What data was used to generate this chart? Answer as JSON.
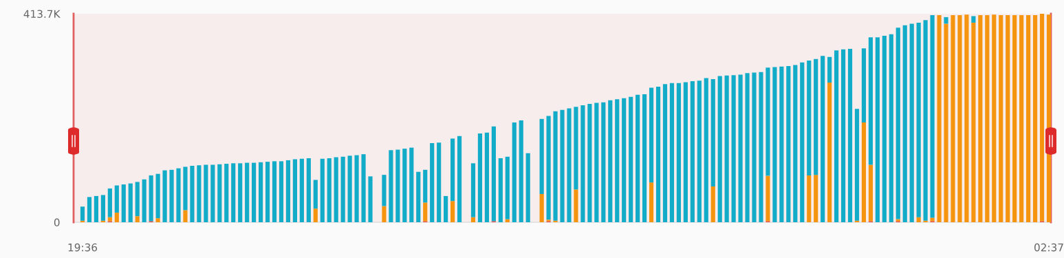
{
  "chart_data": {
    "type": "bar",
    "stacked": true,
    "categories": [
      "19:36",
      null,
      null,
      null,
      null,
      null,
      null,
      null,
      null,
      null,
      null,
      null,
      null,
      null,
      null,
      null,
      null,
      null,
      null,
      null,
      null,
      null,
      null,
      null,
      null,
      null,
      null,
      null,
      null,
      null,
      null,
      null,
      null,
      null,
      null,
      null,
      null,
      null,
      null,
      null,
      null,
      null,
      null,
      null,
      null,
      null,
      null,
      null,
      null,
      null,
      null,
      null,
      null,
      null,
      null,
      null,
      null,
      null,
      null,
      null,
      null,
      null,
      null,
      null,
      null,
      null,
      null,
      null,
      null,
      null,
      null,
      null,
      null,
      null,
      null,
      null,
      null,
      null,
      null,
      null,
      null,
      null,
      null,
      null,
      null,
      null,
      null,
      null,
      null,
      null,
      null,
      null,
      null,
      null,
      null,
      null,
      null,
      null,
      null,
      null,
      null,
      null,
      null,
      null,
      null,
      null,
      null,
      null,
      null,
      null,
      null,
      null,
      null,
      null,
      null,
      null,
      null,
      null,
      null,
      null,
      null,
      null,
      null,
      null,
      null,
      null,
      null,
      null,
      null,
      null,
      null,
      null,
      null,
      null,
      null,
      null,
      null,
      null,
      null,
      null,
      null,
      "02:37"
    ],
    "series": [
      {
        "color": "#e8413c",
        "values": [
          0,
          0,
          0,
          0,
          2,
          0,
          0,
          0,
          0,
          0,
          2,
          0,
          0,
          0,
          0,
          0,
          0,
          0,
          0,
          0,
          0,
          0,
          0,
          0,
          0,
          0,
          0,
          0,
          0,
          0,
          0,
          0,
          0,
          0,
          0,
          0,
          0,
          0,
          0,
          0,
          0,
          0,
          0,
          null,
          0,
          0,
          0,
          0,
          0,
          0,
          2,
          0,
          0,
          0,
          0,
          0,
          null,
          0,
          0,
          0,
          2,
          0,
          0,
          0,
          0,
          0,
          null,
          0,
          2,
          0,
          0,
          0,
          0,
          0,
          0,
          0,
          0,
          0,
          0,
          0,
          0,
          0,
          0,
          0,
          0,
          0,
          0,
          0,
          0,
          0,
          0,
          0,
          0,
          0,
          0,
          0,
          0,
          0,
          0,
          0,
          2,
          0,
          0,
          0,
          0,
          0,
          0,
          0,
          0,
          0,
          0,
          0,
          0,
          0,
          0,
          2,
          0,
          0,
          0,
          2,
          0,
          0,
          0,
          0,
          2,
          0,
          0,
          0,
          0,
          0,
          0,
          0,
          0,
          0,
          0,
          0,
          0,
          0,
          0,
          0,
          2,
          0
        ]
      },
      {
        "color": "#f5950f",
        "values": [
          3,
          0,
          0,
          3,
          8,
          19,
          0,
          0,
          12,
          0,
          0,
          8,
          0,
          0,
          0,
          24,
          0,
          0,
          0,
          0,
          0,
          0,
          0,
          0,
          0,
          0,
          0,
          0,
          0,
          0,
          0,
          0,
          0,
          0,
          27,
          0,
          0,
          0,
          0,
          0,
          0,
          0,
          0,
          null,
          32,
          0,
          0,
          0,
          0,
          0,
          37,
          0,
          0,
          0,
          42,
          0,
          null,
          10,
          0,
          0,
          0,
          0,
          6,
          0,
          0,
          0,
          null,
          56,
          3,
          3,
          0,
          0,
          65,
          0,
          0,
          0,
          0,
          0,
          0,
          0,
          0,
          0,
          0,
          79,
          0,
          0,
          0,
          0,
          0,
          0,
          0,
          0,
          71,
          0,
          0,
          0,
          0,
          0,
          0,
          0,
          90,
          0,
          0,
          0,
          0,
          0,
          93,
          94,
          0,
          277,
          0,
          0,
          0,
          3,
          198,
          112,
          0,
          0,
          0,
          4,
          0,
          0,
          10,
          3,
          7,
          411,
          394,
          411,
          411,
          412,
          396,
          411,
          411,
          412,
          411,
          411,
          411,
          411,
          411,
          411,
          412,
          412
        ]
      },
      {
        "color": "#12acc9",
        "values": [
          28,
          50,
          52,
          51,
          57,
          54,
          75,
          77,
          68,
          85,
          91,
          88,
          103,
          104,
          107,
          86,
          112,
          113,
          114,
          114,
          115,
          116,
          117,
          117,
          118,
          118,
          119,
          120,
          121,
          121,
          123,
          125,
          126,
          127,
          57,
          126,
          127,
          129,
          130,
          132,
          133,
          135,
          91,
          null,
          62,
          143,
          144,
          146,
          148,
          100,
          65,
          157,
          158,
          52,
          124,
          171,
          null,
          107,
          176,
          178,
          188,
          127,
          124,
          198,
          202,
          137,
          null,
          149,
          206,
          217,
          223,
          226,
          164,
          232,
          235,
          237,
          238,
          242,
          244,
          246,
          249,
          253,
          254,
          188,
          269,
          274,
          276,
          276,
          278,
          280,
          281,
          286,
          213,
          290,
          291,
          292,
          293,
          296,
          297,
          298,
          215,
          308,
          309,
          310,
          312,
          317,
          228,
          230,
          330,
          51,
          341,
          343,
          344,
          222,
          147,
          253,
          367,
          370,
          373,
          380,
          391,
          394,
          386,
          398,
          402,
          0,
          13,
          0,
          0,
          0,
          13,
          0,
          0,
          0,
          0,
          0,
          0,
          0,
          0,
          0,
          0,
          0
        ]
      }
    ],
    "ylim": [
      0,
      413.7
    ],
    "yticks": [
      0,
      {
        "value": 413.7,
        "label": "413.7K"
      }
    ]
  }
}
